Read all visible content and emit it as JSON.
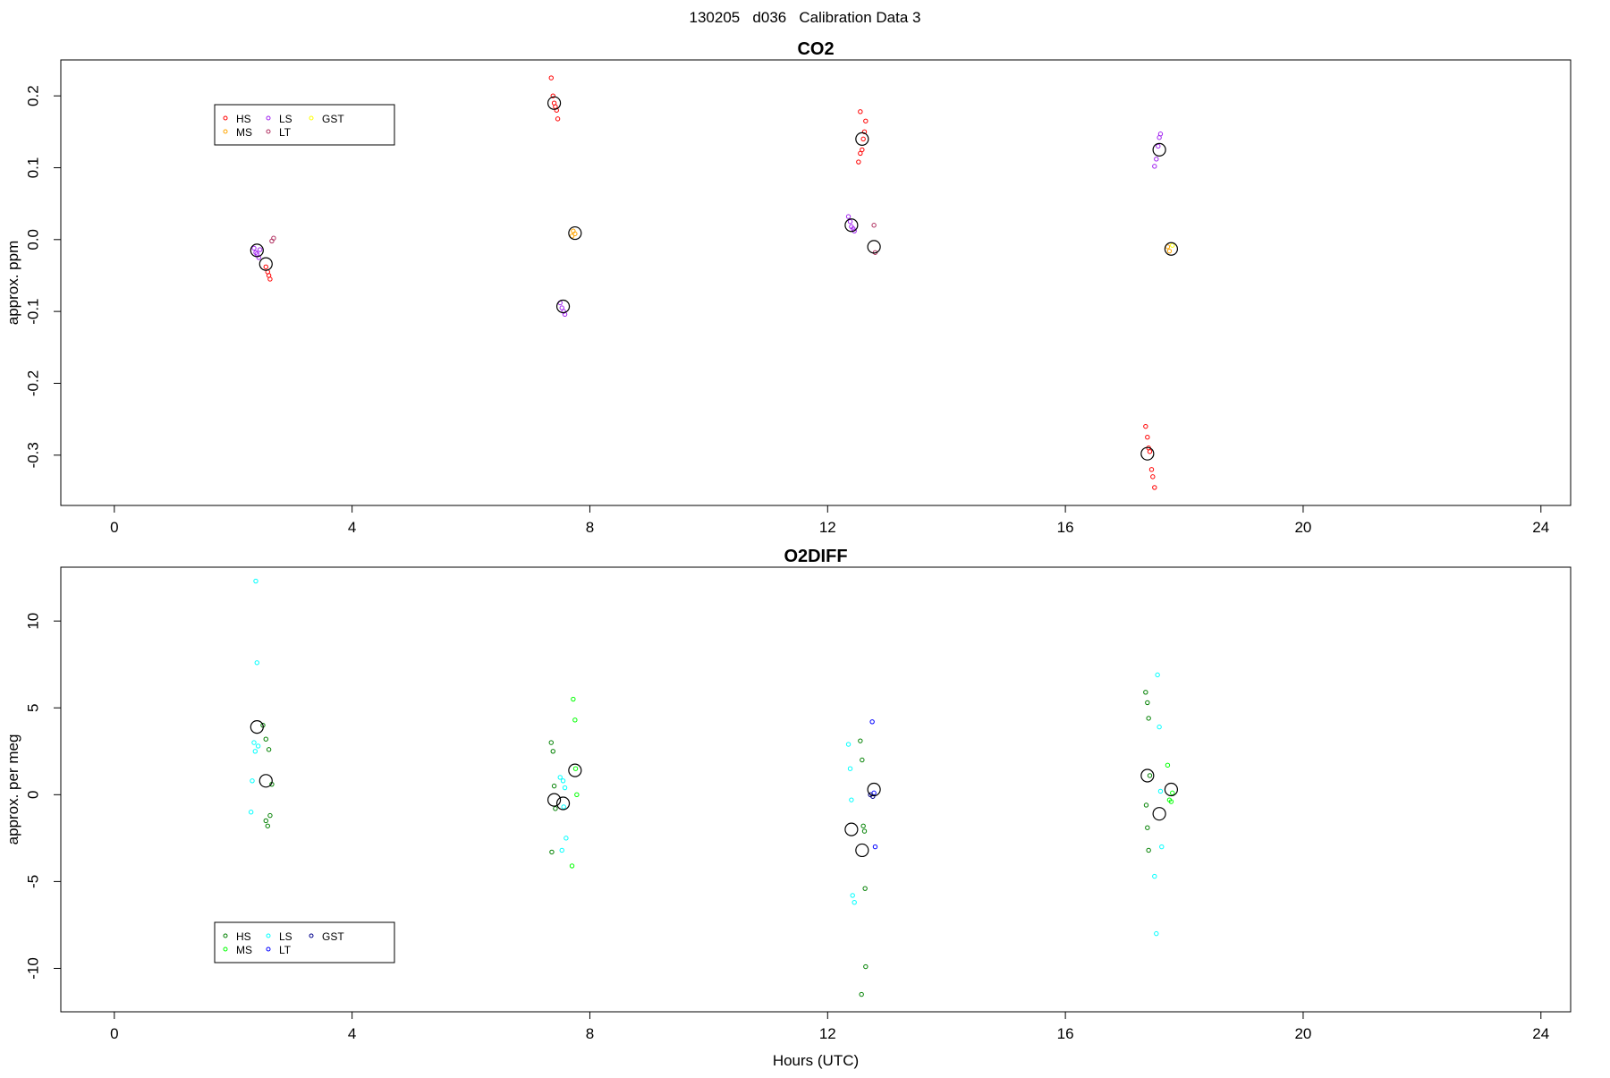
{
  "figure": {
    "suptitle": "130205   d036   Calibration Data 3"
  },
  "chart_data": [
    {
      "type": "scatter",
      "title": "CO2",
      "xlabel": "",
      "ylabel": "approx. ppm",
      "xlim": [
        -0.9,
        24.5
      ],
      "ylim": [
        -0.37,
        0.25
      ],
      "xticks": [
        0,
        4,
        8,
        12,
        16,
        20,
        24
      ],
      "yticks": [
        -0.3,
        -0.2,
        -0.1,
        0.0,
        0.1,
        0.2
      ],
      "ytick_labels": [
        "-0.3",
        "-0.2",
        "-0.1",
        "0.0",
        "0.1",
        "0.2"
      ],
      "legend": {
        "placement": "top-left",
        "entries": [
          {
            "label": "HS",
            "color": "#ff0000"
          },
          {
            "label": "MS",
            "color": "#ffa500"
          },
          {
            "label": "LS",
            "color": "#a020f0"
          },
          {
            "label": "LT",
            "color": "#b03060"
          },
          {
            "label": "GST",
            "color": "#ffff00"
          }
        ]
      },
      "series": [
        {
          "name": "HS",
          "color": "#ff0000",
          "x": [
            7.35,
            7.38,
            7.4,
            7.42,
            7.44,
            7.46,
            12.52,
            12.55,
            12.58,
            12.6,
            12.62,
            12.64,
            12.55,
            2.55,
            2.58,
            2.6,
            2.62,
            17.35,
            17.38,
            17.4,
            17.42,
            17.45,
            17.47,
            17.5
          ],
          "y": [
            0.225,
            0.2,
            0.19,
            0.185,
            0.18,
            0.168,
            0.108,
            0.12,
            0.125,
            0.14,
            0.15,
            0.165,
            0.178,
            -0.038,
            -0.045,
            -0.05,
            -0.055,
            -0.26,
            -0.275,
            -0.29,
            -0.295,
            -0.32,
            -0.33,
            -0.345
          ]
        },
        {
          "name": "MS",
          "color": "#ffa500",
          "x": [
            7.7,
            7.72,
            7.75,
            17.72,
            17.75
          ],
          "y": [
            0.005,
            0.012,
            0.008,
            -0.01,
            -0.016
          ]
        },
        {
          "name": "LS",
          "color": "#a020f0",
          "x": [
            2.35,
            2.38,
            2.4,
            2.43,
            2.45,
            7.5,
            7.53,
            7.56,
            7.58,
            12.35,
            12.38,
            12.4,
            12.43,
            12.45,
            17.5,
            17.53,
            17.56,
            17.58,
            17.6
          ],
          "y": [
            -0.012,
            -0.018,
            -0.02,
            -0.025,
            -0.014,
            -0.088,
            -0.095,
            -0.1,
            -0.104,
            0.032,
            0.025,
            0.018,
            0.015,
            0.012,
            0.102,
            0.112,
            0.13,
            0.142,
            0.147
          ]
        },
        {
          "name": "LT",
          "color": "#b03060",
          "x": [
            2.65,
            2.68,
            12.78,
            12.8
          ],
          "y": [
            -0.002,
            0.002,
            0.02,
            -0.018
          ]
        },
        {
          "name": "GST",
          "color": "#ffff00",
          "x": [
            17.8
          ],
          "y": [
            -0.008
          ]
        },
        {
          "name": "mean",
          "color": "#000000",
          "marker": "large-circle",
          "x": [
            2.4,
            2.55,
            7.4,
            7.55,
            7.75,
            12.4,
            12.58,
            12.78,
            17.38,
            17.58,
            17.78
          ],
          "y": [
            -0.015,
            -0.034,
            0.19,
            -0.093,
            0.009,
            0.02,
            0.14,
            -0.01,
            -0.298,
            0.125,
            -0.013
          ]
        }
      ]
    },
    {
      "type": "scatter",
      "title": "O2DIFF",
      "xlabel": "Hours (UTC)",
      "ylabel": "approx. per meg",
      "xlim": [
        -0.9,
        24.5
      ],
      "ylim": [
        -12.5,
        13.1
      ],
      "xticks": [
        0,
        4,
        8,
        12,
        16,
        20,
        24
      ],
      "yticks": [
        -10,
        -5,
        0,
        5,
        10
      ],
      "ytick_labels": [
        "-10",
        "-5",
        "0",
        "5",
        "10"
      ],
      "legend": {
        "placement": "bottom-left",
        "entries": [
          {
            "label": "HS",
            "color": "#008000"
          },
          {
            "label": "MS",
            "color": "#00ff00"
          },
          {
            "label": "LS",
            "color": "#00ffff"
          },
          {
            "label": "LT",
            "color": "#0000ff"
          },
          {
            "label": "GST",
            "color": "#00008b"
          }
        ]
      },
      "series": [
        {
          "name": "HS",
          "color": "#008000",
          "x": [
            2.5,
            2.55,
            2.6,
            2.65,
            2.62,
            2.55,
            2.58,
            7.35,
            7.38,
            7.4,
            7.42,
            7.36,
            12.55,
            12.58,
            12.6,
            12.62,
            12.63,
            12.64,
            12.57,
            17.35,
            17.38,
            17.4,
            17.42,
            17.36,
            17.38,
            17.4
          ],
          "y": [
            4.0,
            3.2,
            2.6,
            0.6,
            -1.2,
            -1.5,
            -1.8,
            3.0,
            2.5,
            0.5,
            -0.8,
            -3.3,
            3.1,
            2.0,
            -1.8,
            -2.1,
            -5.4,
            -9.9,
            -11.5,
            5.9,
            5.3,
            4.4,
            1.1,
            -0.6,
            -1.9,
            -3.2
          ]
        },
        {
          "name": "MS",
          "color": "#00ff00",
          "x": [
            7.72,
            7.75,
            7.78,
            7.7,
            7.76,
            17.72,
            17.75,
            17.78,
            17.8
          ],
          "y": [
            5.5,
            4.3,
            0.0,
            -4.1,
            1.5,
            1.7,
            -0.3,
            -0.4,
            0.1
          ]
        },
        {
          "name": "LS",
          "color": "#00ffff",
          "x": [
            2.38,
            2.4,
            2.35,
            2.42,
            2.37,
            2.32,
            2.3,
            7.5,
            7.55,
            7.58,
            7.6,
            7.53,
            7.56,
            12.35,
            12.38,
            12.4,
            12.42,
            12.45,
            17.55,
            17.58,
            17.6,
            17.62,
            17.5,
            17.53
          ],
          "y": [
            12.3,
            7.6,
            3.0,
            2.8,
            2.5,
            0.8,
            -1.0,
            1.0,
            0.8,
            0.4,
            -2.5,
            -3.2,
            -0.7,
            2.9,
            1.5,
            -0.3,
            -5.8,
            -6.2,
            6.9,
            3.9,
            0.2,
            -3.0,
            -4.7,
            -8.0
          ]
        },
        {
          "name": "LT",
          "color": "#0000ff",
          "x": [
            12.75,
            12.78,
            12.8
          ],
          "y": [
            4.2,
            0.1,
            -3.0
          ]
        },
        {
          "name": "GST",
          "color": "#00008b",
          "x": [
            12.72,
            12.76
          ],
          "y": [
            0.0,
            -0.1
          ]
        },
        {
          "name": "mean",
          "color": "#000000",
          "marker": "large-circle",
          "x": [
            2.4,
            2.55,
            7.4,
            7.55,
            7.75,
            12.4,
            12.58,
            12.78,
            17.38,
            17.58,
            17.78
          ],
          "y": [
            3.9,
            0.8,
            -0.3,
            -0.5,
            1.4,
            -2.0,
            -3.2,
            0.3,
            1.1,
            -1.1,
            0.3
          ]
        }
      ]
    }
  ]
}
